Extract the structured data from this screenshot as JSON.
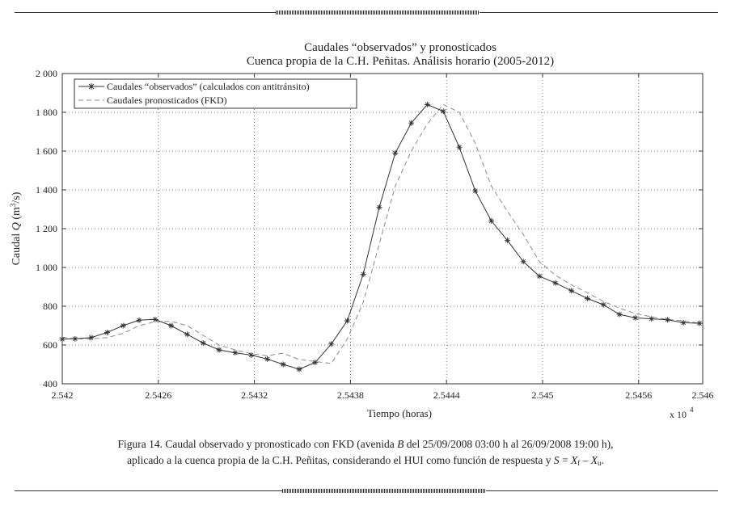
{
  "chart_data": {
    "type": "line",
    "title": "Caudales “observados” y pronosticados",
    "subtitle": "Cuenca propia de la C.H. Peñitas. Análisis horario (2005-2012)",
    "xlabel": "Tiempo (horas)",
    "ylabel": "Caudal",
    "ylabel_var": "Q",
    "ylabel_unit_pre": "(m",
    "ylabel_unit_exp": "3",
    "ylabel_unit_post": "/s)",
    "x_multiplier": "x 10",
    "x_multiplier_exp": "4",
    "xlim": [
      2.542,
      2.546
    ],
    "ylim": [
      400,
      2000
    ],
    "xticks": [
      2.542,
      2.5426,
      2.5432,
      2.5438,
      2.5444,
      2.545,
      2.5456,
      2.546
    ],
    "xtick_labels": [
      "2.542",
      "2.5426",
      "2.5432",
      "2.5438",
      "2.5444",
      "2.545",
      "2.5456",
      "2.546"
    ],
    "yticks": [
      400,
      600,
      800,
      1000,
      1200,
      1400,
      1600,
      1800,
      2000
    ],
    "ytick_labels": [
      "400",
      "600",
      "800",
      "1 000",
      "1 200",
      "1 400",
      "1 600",
      "1 800",
      "2 000"
    ],
    "grid": true,
    "legend_position": "top-left",
    "series": [
      {
        "name": "Caudales “observados” (calculados con antitránsito)",
        "style": "solid-markers",
        "color": "#333333",
        "x": [
          2.542,
          2.54208,
          2.54218,
          2.54228,
          2.54238,
          2.54248,
          2.54258,
          2.54268,
          2.54278,
          2.54288,
          2.54298,
          2.54308,
          2.54318,
          2.54328,
          2.54338,
          2.54348,
          2.54358,
          2.54368,
          2.54378,
          2.54388,
          2.54398,
          2.54408,
          2.54418,
          2.54428,
          2.54438,
          2.54448,
          2.54458,
          2.54468,
          2.54478,
          2.54488,
          2.54498,
          2.54508,
          2.54518,
          2.54528,
          2.54538,
          2.54548,
          2.54558,
          2.54568,
          2.54578,
          2.54588,
          2.54598
        ],
        "y": [
          630,
          632,
          638,
          665,
          700,
          728,
          732,
          700,
          655,
          610,
          575,
          560,
          548,
          528,
          500,
          475,
          510,
          605,
          725,
          965,
          1310,
          1590,
          1745,
          1840,
          1805,
          1620,
          1395,
          1240,
          1140,
          1030,
          955,
          920,
          880,
          840,
          808,
          758,
          740,
          735,
          730,
          715,
          712
        ]
      },
      {
        "name": "Caudales pronosticados (FKD)",
        "style": "dashed",
        "color": "#8a8a8a",
        "x": [
          2.542,
          2.54208,
          2.54218,
          2.54228,
          2.54238,
          2.54248,
          2.54258,
          2.54268,
          2.54278,
          2.54288,
          2.54298,
          2.54308,
          2.54318,
          2.54328,
          2.54338,
          2.54348,
          2.54358,
          2.54368,
          2.54378,
          2.54388,
          2.54398,
          2.54408,
          2.54418,
          2.54428,
          2.54438,
          2.54448,
          2.54458,
          2.54468,
          2.54478,
          2.54488,
          2.54498,
          2.54508,
          2.54518,
          2.54528,
          2.54538,
          2.54548,
          2.54558,
          2.54568,
          2.54578,
          2.54588,
          2.54598
        ],
        "y": [
          640,
          632,
          632,
          638,
          660,
          700,
          720,
          722,
          700,
          650,
          600,
          575,
          555,
          545,
          558,
          525,
          515,
          505,
          630,
          820,
          1120,
          1420,
          1600,
          1740,
          1840,
          1800,
          1640,
          1420,
          1290,
          1170,
          1030,
          960,
          910,
          870,
          825,
          790,
          762,
          745,
          732,
          725,
          712
        ]
      }
    ]
  },
  "caption": {
    "line1_a": "Figura 14. Caudal observado y pronosticado con FKD (avenida ",
    "line1_b": "B",
    "line1_c": " del 25/09/2008 03:00 h al 26/09/2008 19:00 h),",
    "line2_a": "aplicado a la cuenca propia de la C.H. Peñitas, considerando el HUI como función de respuesta y ",
    "line2_S": "S",
    "line2_eq": " = ",
    "line2_X1": "X",
    "line2_sub1": "f",
    "line2_minus": " – ",
    "line2_X2": "X",
    "line2_sub2": "u",
    "line2_end": "."
  }
}
